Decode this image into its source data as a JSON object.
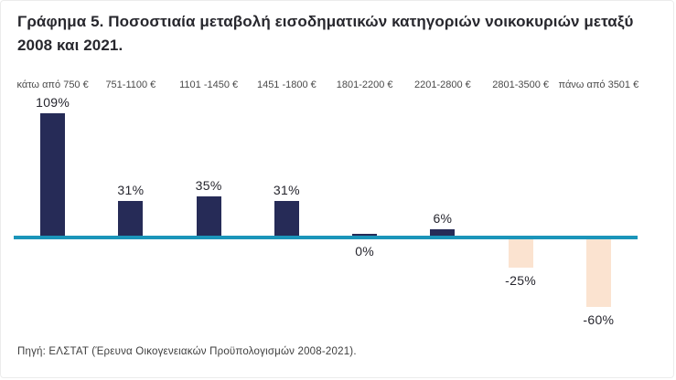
{
  "title": "Γράφημα 5. Ποσοστιαία μεταβολή εισοδηματικών κατηγοριών νοικοκυριών μεταξύ 2008 και 2021.",
  "source": "Πηγή: ΕΛΣΤΑΤ (Έρευνα Οικογενειακών Προϋπολογισμών 2008-2021).",
  "colors": {
    "positive_bar": "#262b57",
    "negative_bar": "#fbe3d0",
    "baseline": "#1b95ba",
    "title_text": "#27272d",
    "category_text": "#4a4a4a",
    "value_text": "#26262e"
  },
  "chart_data": {
    "type": "bar",
    "title": "Γράφημα 5. Ποσοστιαία μεταβολή εισοδηματικών κατηγοριών νοικοκυριών μεταξύ 2008 και 2021.",
    "xlabel": "",
    "ylabel": "",
    "categories": [
      "κάτω από 750 €",
      "751-1100 €",
      "1101 -1450 €",
      "1451 -1800 €",
      "1801-2200 €",
      "2201-2800 €",
      "2801-3500 €",
      "πάνω από 3501 €"
    ],
    "values": [
      109,
      31,
      35,
      31,
      0,
      6,
      -25,
      -60
    ],
    "labels": [
      "109%",
      "31%",
      "35%",
      "31%",
      "0%",
      "6%",
      "-25%",
      "-60%"
    ],
    "ylim": [
      -80,
      120
    ],
    "grid": false,
    "legend": false,
    "baseline": 0,
    "positive_color": "#262b57",
    "negative_color": "#fbe3d0",
    "baseline_color": "#1b95ba"
  }
}
